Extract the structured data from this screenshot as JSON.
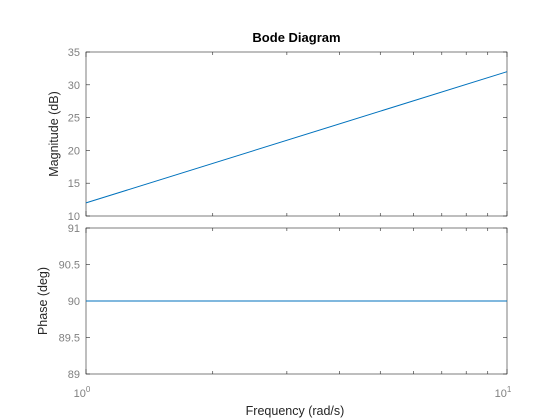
{
  "chart_data": {
    "type": "line",
    "title": "Bode Diagram",
    "xlabel": "Frequency  (rad/s)",
    "xscale": "log",
    "xlim": [
      1,
      10
    ],
    "xticks": [
      {
        "value": 1,
        "base": "10",
        "exponent": "0"
      },
      {
        "value": 10,
        "base": "10",
        "exponent": "1"
      }
    ],
    "line_color": "#0072BD",
    "grid": false,
    "panels": [
      {
        "name": "magnitude",
        "ylabel": "Magnitude (dB)",
        "ylim": [
          10,
          35
        ],
        "yticks": [
          "10",
          "15",
          "20",
          "25",
          "30",
          "35"
        ],
        "series": [
          {
            "x": [
              1,
              10
            ],
            "y": [
              12,
              32
            ]
          }
        ]
      },
      {
        "name": "phase",
        "ylabel": "Phase (deg)",
        "ylim": [
          89,
          91
        ],
        "yticks": [
          "89",
          "89.5",
          "90",
          "90.5",
          "91"
        ],
        "series": [
          {
            "x": [
              1,
              10
            ],
            "y": [
              90,
              90
            ]
          }
        ]
      }
    ]
  }
}
